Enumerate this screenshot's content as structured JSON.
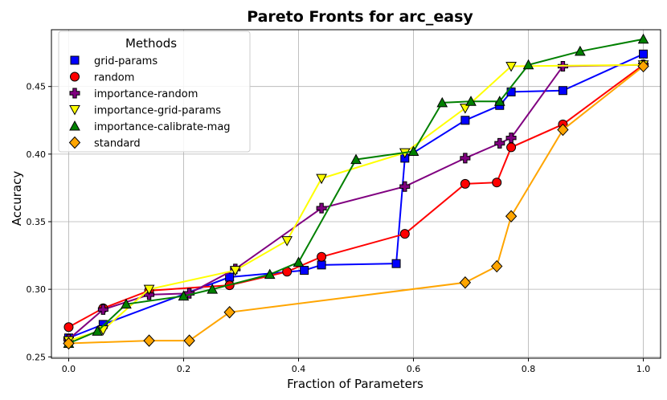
{
  "chart_data": {
    "type": "line",
    "title": "Pareto Fronts for arc_easy",
    "xlabel": "Fraction of Parameters",
    "ylabel": "Accuracy",
    "xlim": [
      -0.03,
      1.03
    ],
    "ylim": [
      0.249,
      0.492
    ],
    "xticks": [
      "0.0",
      "0.2",
      "0.4",
      "0.6",
      "0.8",
      "1.0"
    ],
    "yticks": [
      "0.25",
      "0.30",
      "0.35",
      "0.40",
      "0.45"
    ],
    "grid": true,
    "legend": {
      "title": "Methods",
      "placement": "top-left"
    },
    "series": [
      {
        "name": "grid-params",
        "color": "#0000ff",
        "marker": "square",
        "points": [
          [
            0.0,
            0.264
          ],
          [
            0.06,
            0.274
          ],
          [
            0.28,
            0.309
          ],
          [
            0.41,
            0.314
          ],
          [
            0.44,
            0.318
          ],
          [
            0.57,
            0.319
          ],
          [
            0.585,
            0.397
          ],
          [
            0.69,
            0.425
          ],
          [
            0.75,
            0.436
          ],
          [
            0.77,
            0.446
          ],
          [
            0.86,
            0.447
          ],
          [
            1.0,
            0.474
          ]
        ]
      },
      {
        "name": "random",
        "color": "#ff0000",
        "marker": "circle",
        "points": [
          [
            0.0,
            0.272
          ],
          [
            0.06,
            0.286
          ],
          [
            0.14,
            0.299
          ],
          [
            0.28,
            0.303
          ],
          [
            0.38,
            0.313
          ],
          [
            0.44,
            0.324
          ],
          [
            0.585,
            0.341
          ],
          [
            0.69,
            0.378
          ],
          [
            0.745,
            0.379
          ],
          [
            0.77,
            0.405
          ],
          [
            0.86,
            0.422
          ],
          [
            1.0,
            0.466
          ]
        ]
      },
      {
        "name": "importance-random",
        "color": "#800080",
        "marker": "plus",
        "points": [
          [
            0.0,
            0.263
          ],
          [
            0.06,
            0.285
          ],
          [
            0.14,
            0.296
          ],
          [
            0.21,
            0.297
          ],
          [
            0.29,
            0.315
          ],
          [
            0.44,
            0.36
          ],
          [
            0.585,
            0.376
          ],
          [
            0.69,
            0.397
          ],
          [
            0.75,
            0.408
          ],
          [
            0.77,
            0.412
          ],
          [
            0.86,
            0.465
          ],
          [
            1.0,
            0.466
          ]
        ]
      },
      {
        "name": "importance-grid-params",
        "color": "#ffff00",
        "marker": "triangle-down",
        "points": [
          [
            0.0,
            0.262
          ],
          [
            0.06,
            0.27
          ],
          [
            0.14,
            0.3
          ],
          [
            0.29,
            0.314
          ],
          [
            0.38,
            0.336
          ],
          [
            0.44,
            0.382
          ],
          [
            0.585,
            0.401
          ],
          [
            0.69,
            0.434
          ],
          [
            0.77,
            0.465
          ],
          [
            1.0,
            0.466
          ]
        ]
      },
      {
        "name": "importance-calibrate-mag",
        "color": "#008000",
        "marker": "triangle-up",
        "points": [
          [
            0.0,
            0.26
          ],
          [
            0.05,
            0.269
          ],
          [
            0.1,
            0.289
          ],
          [
            0.2,
            0.295
          ],
          [
            0.25,
            0.3
          ],
          [
            0.35,
            0.311
          ],
          [
            0.4,
            0.32
          ],
          [
            0.5,
            0.396
          ],
          [
            0.6,
            0.402
          ],
          [
            0.65,
            0.438
          ],
          [
            0.7,
            0.439
          ],
          [
            0.75,
            0.439
          ],
          [
            0.8,
            0.466
          ],
          [
            0.89,
            0.476
          ],
          [
            1.0,
            0.485
          ]
        ]
      },
      {
        "name": "standard",
        "color": "#ffa500",
        "marker": "diamond",
        "points": [
          [
            0.0,
            0.26
          ],
          [
            0.14,
            0.262
          ],
          [
            0.21,
            0.262
          ],
          [
            0.28,
            0.283
          ],
          [
            0.69,
            0.305
          ],
          [
            0.745,
            0.317
          ],
          [
            0.77,
            0.354
          ],
          [
            0.86,
            0.418
          ],
          [
            1.0,
            0.465
          ]
        ]
      }
    ]
  }
}
